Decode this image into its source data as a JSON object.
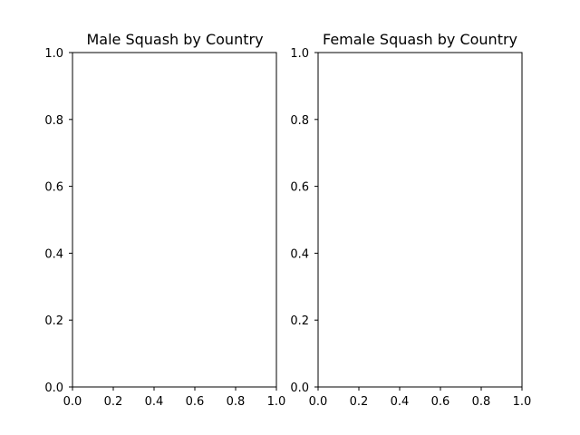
{
  "chart_data": [
    {
      "type": "bar",
      "title": "Male Squash by Country",
      "xlabel": "",
      "ylabel": "",
      "categories": [],
      "values": [],
      "xlim": [
        0.0,
        1.0
      ],
      "ylim": [
        0.0,
        1.0
      ],
      "xticks": [
        "0.0",
        "0.2",
        "0.4",
        "0.6",
        "0.8",
        "1.0"
      ],
      "yticks": [
        "0.0",
        "0.2",
        "0.4",
        "0.6",
        "0.8",
        "1.0"
      ],
      "grid": false,
      "legend": "none"
    },
    {
      "type": "bar",
      "title": "Female Squash by Country",
      "xlabel": "",
      "ylabel": "",
      "categories": [],
      "values": [],
      "xlim": [
        0.0,
        1.0
      ],
      "ylim": [
        0.0,
        1.0
      ],
      "xticks": [
        "0.0",
        "0.2",
        "0.4",
        "0.6",
        "0.8",
        "1.0"
      ],
      "yticks": [
        "0.0",
        "0.2",
        "0.4",
        "0.6",
        "0.8",
        "1.0"
      ],
      "grid": false,
      "legend": "none"
    }
  ],
  "colors": {
    "background": "#ffffff",
    "axes": "#000000",
    "text": "#000000"
  }
}
